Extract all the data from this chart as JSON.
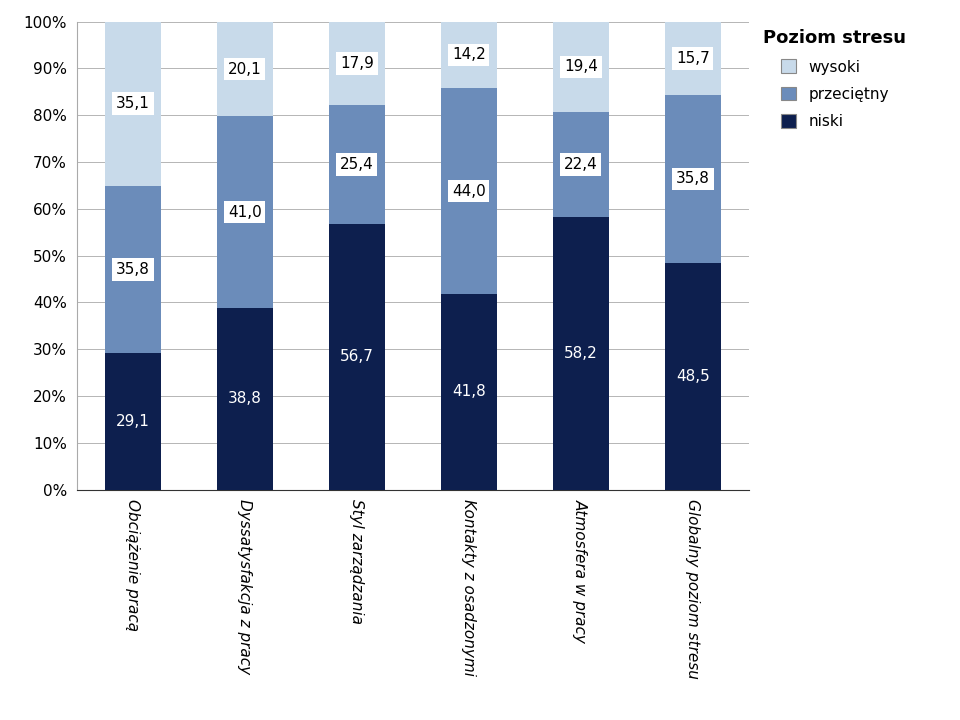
{
  "categories": [
    "Obciążenie pracą",
    "Dyssatysfakcja z pracy",
    "Styl zarządzania",
    "Kontakty z osadzonymi",
    "Atmosfera w pracy",
    "Globalny poziom stresu"
  ],
  "niski": [
    29.1,
    38.8,
    56.7,
    41.8,
    58.2,
    48.5
  ],
  "przecietny": [
    35.8,
    41.0,
    25.4,
    44.0,
    22.4,
    35.8
  ],
  "wysoki": [
    35.1,
    20.1,
    17.9,
    14.2,
    19.4,
    15.7
  ],
  "color_niski": "#0d1f4e",
  "color_przecietny": "#6b8cba",
  "color_wysoki": "#c8daea",
  "legend_title": "Poziom stresu",
  "ylabel_ticks": [
    "0%",
    "10%",
    "20%",
    "30%",
    "40%",
    "50%",
    "60%",
    "70%",
    "80%",
    "90%",
    "100%"
  ],
  "yticks": [
    0,
    10,
    20,
    30,
    40,
    50,
    60,
    70,
    80,
    90,
    100
  ],
  "bar_width": 0.5,
  "legend_title_fontsize": 13,
  "label_fontsize": 11,
  "tick_fontsize": 11,
  "annotation_fontsize": 11
}
